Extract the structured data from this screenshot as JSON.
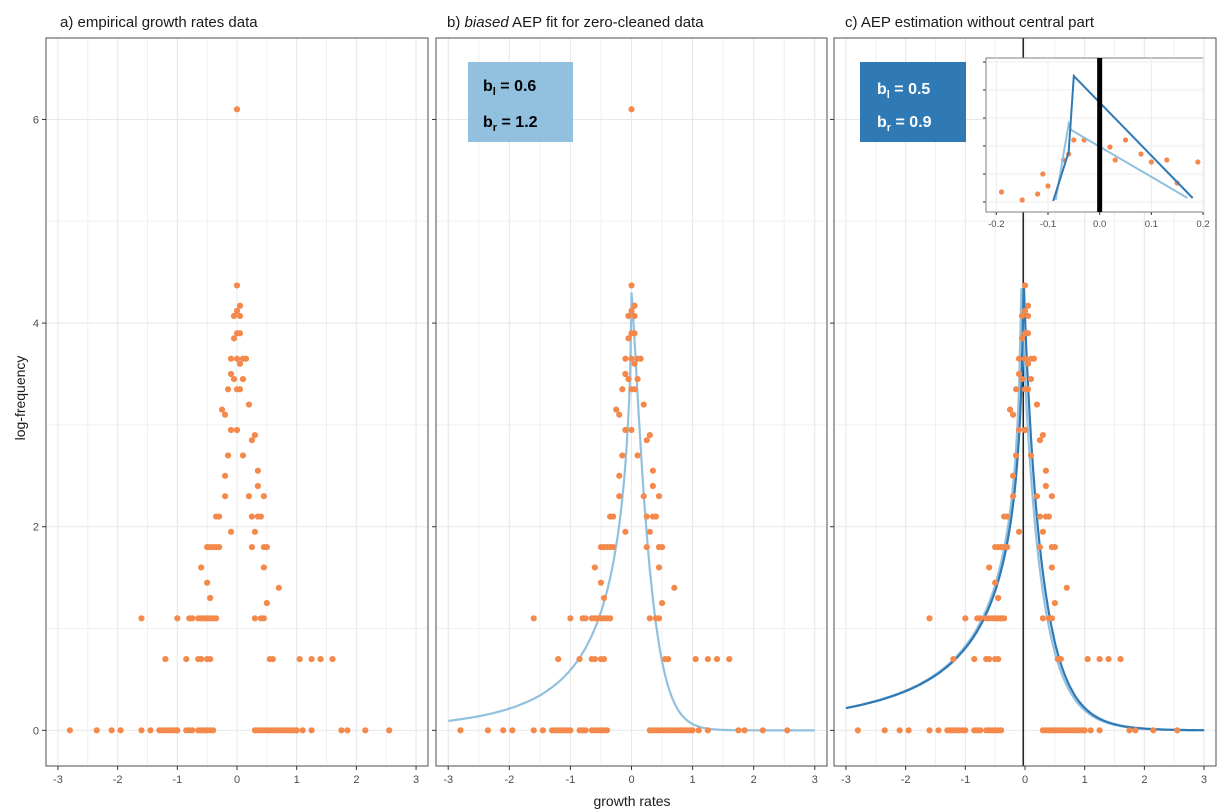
{
  "colors": {
    "points": "#f4894b",
    "fit_b": "#92c1e0",
    "fit_c": "#2f79b4",
    "grid": "#e8e8e8"
  },
  "axes": {
    "ylabel": "log-frequency",
    "xlabel": "growth rates"
  },
  "panels": [
    {
      "title_prefix": "a) ",
      "title_italic": "",
      "title_rest": "empirical growth rates data"
    },
    {
      "title_prefix": "b) ",
      "title_italic": "biased",
      "title_rest": " AEP fit for zero-cleaned data",
      "ann": {
        "bl_main": "b",
        "bl_sub": "l",
        "bl_val": " = 0.6",
        "br_main": "b",
        "br_sub": "r",
        "br_val": " = 1.2",
        "bg": "#92c1e0"
      }
    },
    {
      "title_prefix": "c) ",
      "title_italic": "",
      "title_rest": "AEP estimation without central part",
      "ann": {
        "bl_main": "b",
        "bl_sub": "l",
        "bl_val": " = 0.5",
        "br_main": "b",
        "br_sub": "r",
        "br_val": " = 0.9",
        "bg": "#2f79b4"
      }
    }
  ],
  "chart_data": {
    "type": "scatter",
    "xlabel": "growth rates",
    "ylabel": "log-frequency",
    "xlim": [
      -3.2,
      3.2
    ],
    "ylim": [
      -0.35,
      6.8
    ],
    "xticks": [
      -3,
      -2,
      -1,
      0,
      1,
      2,
      3
    ],
    "yticks": [
      0,
      2,
      4,
      6
    ],
    "points": [
      [
        0.0,
        6.1
      ],
      [
        0.0,
        4.37
      ],
      [
        0.05,
        4.17
      ],
      [
        0.0,
        4.12
      ],
      [
        -0.05,
        4.07
      ],
      [
        0.05,
        4.07
      ],
      [
        0.0,
        3.9
      ],
      [
        -0.05,
        3.85
      ],
      [
        0.05,
        3.9
      ],
      [
        -0.1,
        3.65
      ],
      [
        0.0,
        3.65
      ],
      [
        0.1,
        3.65
      ],
      [
        0.15,
        3.65
      ],
      [
        0.05,
        3.6
      ],
      [
        -0.1,
        3.5
      ],
      [
        -0.05,
        3.45
      ],
      [
        0.1,
        3.45
      ],
      [
        -0.15,
        3.35
      ],
      [
        0.0,
        3.35
      ],
      [
        0.05,
        3.35
      ],
      [
        -0.25,
        3.15
      ],
      [
        -0.2,
        3.1
      ],
      [
        0.2,
        3.2
      ],
      [
        -0.1,
        2.95
      ],
      [
        0.0,
        2.95
      ],
      [
        0.3,
        2.9
      ],
      [
        0.25,
        2.85
      ],
      [
        -0.15,
        2.7
      ],
      [
        0.1,
        2.7
      ],
      [
        -0.2,
        2.5
      ],
      [
        0.35,
        2.55
      ],
      [
        0.35,
        2.4
      ],
      [
        -0.2,
        2.3
      ],
      [
        0.2,
        2.3
      ],
      [
        0.45,
        2.3
      ],
      [
        -0.35,
        2.1
      ],
      [
        -0.3,
        2.1
      ],
      [
        0.25,
        2.1
      ],
      [
        0.35,
        2.1
      ],
      [
        0.4,
        2.1
      ],
      [
        -0.1,
        1.95
      ],
      [
        0.3,
        1.95
      ],
      [
        -0.5,
        1.8
      ],
      [
        -0.45,
        1.8
      ],
      [
        -0.4,
        1.8
      ],
      [
        -0.35,
        1.8
      ],
      [
        -0.3,
        1.8
      ],
      [
        0.25,
        1.8
      ],
      [
        0.45,
        1.8
      ],
      [
        0.5,
        1.8
      ],
      [
        -0.6,
        1.6
      ],
      [
        0.45,
        1.6
      ],
      [
        -0.5,
        1.45
      ],
      [
        0.7,
        1.4
      ],
      [
        -0.45,
        1.3
      ],
      [
        0.5,
        1.25
      ],
      [
        -1.6,
        1.1
      ],
      [
        -1.0,
        1.1
      ],
      [
        -0.8,
        1.1
      ],
      [
        -0.75,
        1.1
      ],
      [
        -0.65,
        1.1
      ],
      [
        -0.6,
        1.1
      ],
      [
        -0.55,
        1.1
      ],
      [
        -0.5,
        1.1
      ],
      [
        -0.45,
        1.1
      ],
      [
        -0.4,
        1.1
      ],
      [
        -0.35,
        1.1
      ],
      [
        0.3,
        1.1
      ],
      [
        0.4,
        1.1
      ],
      [
        0.45,
        1.1
      ],
      [
        -1.2,
        0.7
      ],
      [
        -0.85,
        0.7
      ],
      [
        -0.65,
        0.7
      ],
      [
        -0.6,
        0.7
      ],
      [
        -0.5,
        0.7
      ],
      [
        -0.45,
        0.7
      ],
      [
        0.55,
        0.7
      ],
      [
        0.6,
        0.7
      ],
      [
        1.05,
        0.7
      ],
      [
        1.25,
        0.7
      ],
      [
        1.4,
        0.7
      ],
      [
        1.6,
        0.7
      ],
      [
        -2.8,
        0
      ],
      [
        -2.35,
        0
      ],
      [
        -2.1,
        0
      ],
      [
        -1.95,
        0
      ],
      [
        -1.6,
        0
      ],
      [
        -1.45,
        0
      ],
      [
        -1.3,
        0
      ],
      [
        -1.25,
        0
      ],
      [
        -1.2,
        0
      ],
      [
        -1.15,
        0
      ],
      [
        -1.1,
        0
      ],
      [
        -1.05,
        0
      ],
      [
        -1.0,
        0
      ],
      [
        -0.85,
        0
      ],
      [
        -0.8,
        0
      ],
      [
        -0.75,
        0
      ],
      [
        -0.65,
        0
      ],
      [
        -0.6,
        0
      ],
      [
        -0.55,
        0
      ],
      [
        -0.5,
        0
      ],
      [
        -0.45,
        0
      ],
      [
        -0.4,
        0
      ],
      [
        0.3,
        0
      ],
      [
        0.35,
        0
      ],
      [
        0.4,
        0
      ],
      [
        0.45,
        0
      ],
      [
        0.5,
        0
      ],
      [
        0.55,
        0
      ],
      [
        0.6,
        0
      ],
      [
        0.65,
        0
      ],
      [
        0.7,
        0
      ],
      [
        0.75,
        0
      ],
      [
        0.8,
        0
      ],
      [
        0.85,
        0
      ],
      [
        0.9,
        0
      ],
      [
        0.95,
        0
      ],
      [
        1.0,
        0
      ],
      [
        1.1,
        0
      ],
      [
        1.25,
        0
      ],
      [
        1.75,
        0
      ],
      [
        1.85,
        0
      ],
      [
        2.15,
        0
      ],
      [
        2.55,
        0
      ]
    ],
    "fits": [
      {
        "panel": 1,
        "color_key": "fit_b",
        "peak_x": 0.0,
        "peak_y": 4.3,
        "bl": 0.6,
        "br": 1.2
      },
      {
        "panel": 2,
        "color_key": "fit_b",
        "peak_x": -0.07,
        "peak_y": 4.55,
        "bl": 0.5,
        "br": 0.9
      },
      {
        "panel": 2,
        "color_key": "fit_c",
        "peak_x": -0.03,
        "peak_y": 4.6,
        "bl": 0.5,
        "br": 0.9
      }
    ],
    "inset": {
      "xlim": [
        -0.22,
        0.2
      ],
      "xticks": [
        -0.2,
        -0.1,
        0.0,
        0.1,
        0.2
      ],
      "xtick_labels": [
        "-0.2",
        "-0.1",
        "0.0",
        "0.1",
        "0.2"
      ],
      "vline_x": 0.0
    }
  }
}
